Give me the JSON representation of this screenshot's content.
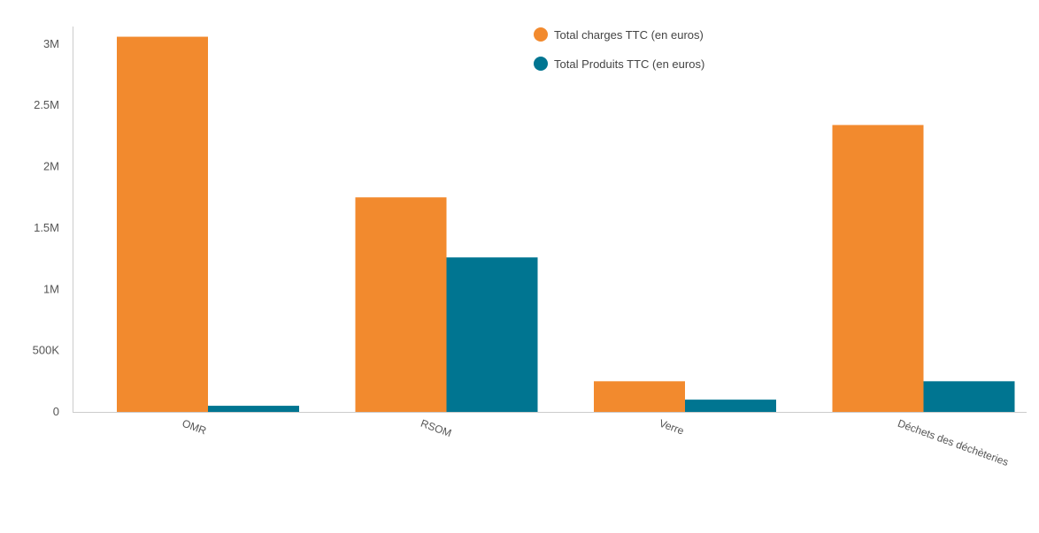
{
  "chart_data": {
    "type": "bar",
    "categories": [
      "OMR",
      "RSOM",
      "Verre",
      "Déchets des déchèteries"
    ],
    "series": [
      {
        "name": "Total charges TTC (en euros)",
        "color": "#f28a2e",
        "values": [
          3060000,
          1750000,
          250000,
          2340000
        ]
      },
      {
        "name": "Total Produits TTC (en euros)",
        "color": "#007591",
        "values": [
          50000,
          1260000,
          100000,
          250000
        ]
      }
    ],
    "ylim": [
      0,
      3100000
    ],
    "yticks": [
      0,
      500000,
      1000000,
      1500000,
      2000000,
      2500000,
      3000000
    ],
    "ytick_labels": [
      "0",
      "500K",
      "1M",
      "1.5M",
      "2M",
      "2.5M",
      "3M"
    ],
    "legend_position": "top-center",
    "grid": false,
    "title": "",
    "xlabel": "",
    "ylabel": ""
  }
}
